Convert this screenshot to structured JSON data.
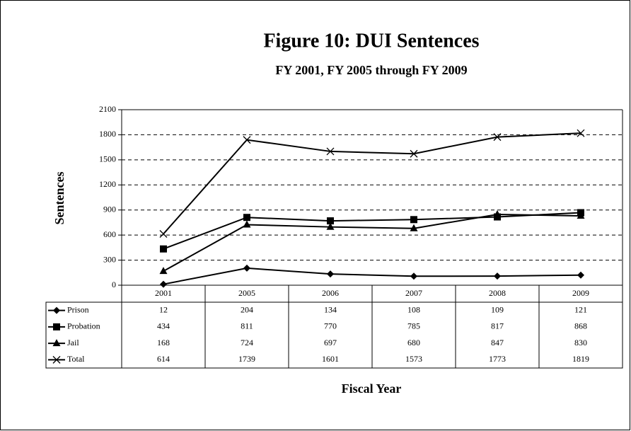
{
  "chart_data": {
    "type": "line",
    "title": "Figure 10: DUI Sentences",
    "subtitle": "FY 2001, FY 2005 through FY 2009",
    "y_label": "Sentences",
    "x_label": "Fiscal Year",
    "categories": [
      "2001",
      "2005",
      "2006",
      "2007",
      "2008",
      "2009"
    ],
    "series": [
      {
        "name": "Prison",
        "color": "#000000",
        "marker": "diamond",
        "values": [
          12,
          204,
          134,
          108,
          109,
          121
        ]
      },
      {
        "name": "Probation",
        "color": "#000000",
        "marker": "square",
        "values": [
          434,
          811,
          770,
          785,
          817,
          868
        ]
      },
      {
        "name": "Jail",
        "color": "#000000",
        "marker": "triangle",
        "values": [
          168,
          724,
          697,
          680,
          847,
          830
        ]
      },
      {
        "name": "Total",
        "color": "#000000",
        "marker": "x",
        "values": [
          614,
          1739,
          1601,
          1573,
          1773,
          1819
        ]
      }
    ],
    "ylim": [
      0,
      2100
    ],
    "yticks": [
      0,
      300,
      600,
      900,
      1200,
      1500,
      1800,
      2100
    ],
    "grid": true,
    "data_table": true
  }
}
